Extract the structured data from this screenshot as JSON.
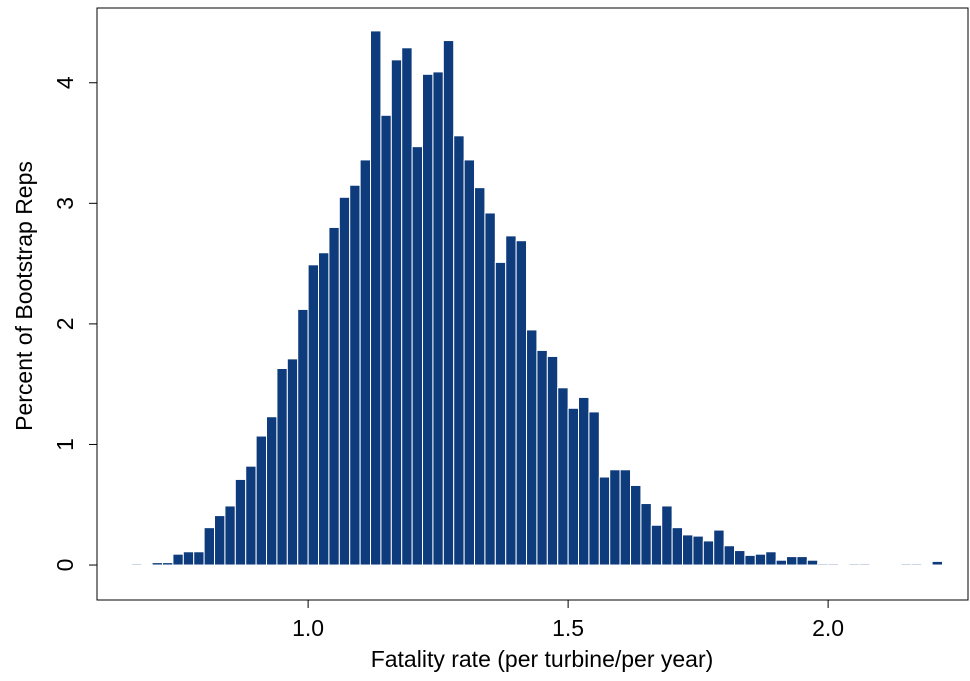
{
  "chart_data": {
    "type": "histogram",
    "xlabel": "Fatality rate (per turbine/per year)",
    "ylabel": "Percent of Bootstrap Reps",
    "color": "#0d3b7c",
    "edgecolor": "#ffffff",
    "bins": [
      0.66,
      0.68,
      0.7,
      0.72,
      0.74,
      0.76,
      0.78,
      0.8,
      0.82,
      0.84,
      0.86,
      0.88,
      0.9,
      0.92,
      0.94,
      0.96,
      0.98,
      1,
      1.02,
      1.04,
      1.06,
      1.08,
      1.1,
      1.12,
      1.14,
      1.16,
      1.18,
      1.2,
      1.22,
      1.24,
      1.26,
      1.28,
      1.3,
      1.32,
      1.34,
      1.36,
      1.38,
      1.4,
      1.42,
      1.44,
      1.46,
      1.48,
      1.5,
      1.52,
      1.54,
      1.56,
      1.58,
      1.6,
      1.62,
      1.64,
      1.66,
      1.68,
      1.7,
      1.72,
      1.74,
      1.76,
      1.78,
      1.8,
      1.82,
      1.84,
      1.86,
      1.88,
      1.9,
      1.92,
      1.94,
      1.96,
      1.98,
      2,
      2.02,
      2.04,
      2.06,
      2.08,
      2.1,
      2.12,
      2.14,
      2.16,
      2.18,
      2.2,
      2.22
    ],
    "values": [
      0.01,
      0,
      0.02,
      0.02,
      0.09,
      0.11,
      0.11,
      0.31,
      0.41,
      0.49,
      0.71,
      0.82,
      1.07,
      1.23,
      1.63,
      1.71,
      2.12,
      2.49,
      2.59,
      2.8,
      3.05,
      3.15,
      3.36,
      4.43,
      3.73,
      4.19,
      4.29,
      3.47,
      4.07,
      4.09,
      4.35,
      3.56,
      3.36,
      3.13,
      2.92,
      2.51,
      2.73,
      2.69,
      1.95,
      1.78,
      1.73,
      1.47,
      1.3,
      1.39,
      1.27,
      0.73,
      0.79,
      0.79,
      0.66,
      0.51,
      0.33,
      0.49,
      0.31,
      0.25,
      0.24,
      0.2,
      0.29,
      0.16,
      0.12,
      0.08,
      0.09,
      0.11,
      0.04,
      0.07,
      0.07,
      0.04,
      0.01,
      0.01,
      0,
      0.01,
      0.01,
      0,
      0,
      0,
      0.01,
      0.01,
      0,
      0.03
    ],
    "xlim": [
      0.594,
      2.269
    ],
    "ylim": [
      -0.29,
      4.62
    ],
    "xticks": [
      {
        "value": 1,
        "label": "1.0"
      },
      {
        "value": 1.5,
        "label": "1.5"
      },
      {
        "value": 2,
        "label": "2.0"
      }
    ],
    "yticks": [
      0,
      1,
      2,
      3,
      4
    ]
  }
}
